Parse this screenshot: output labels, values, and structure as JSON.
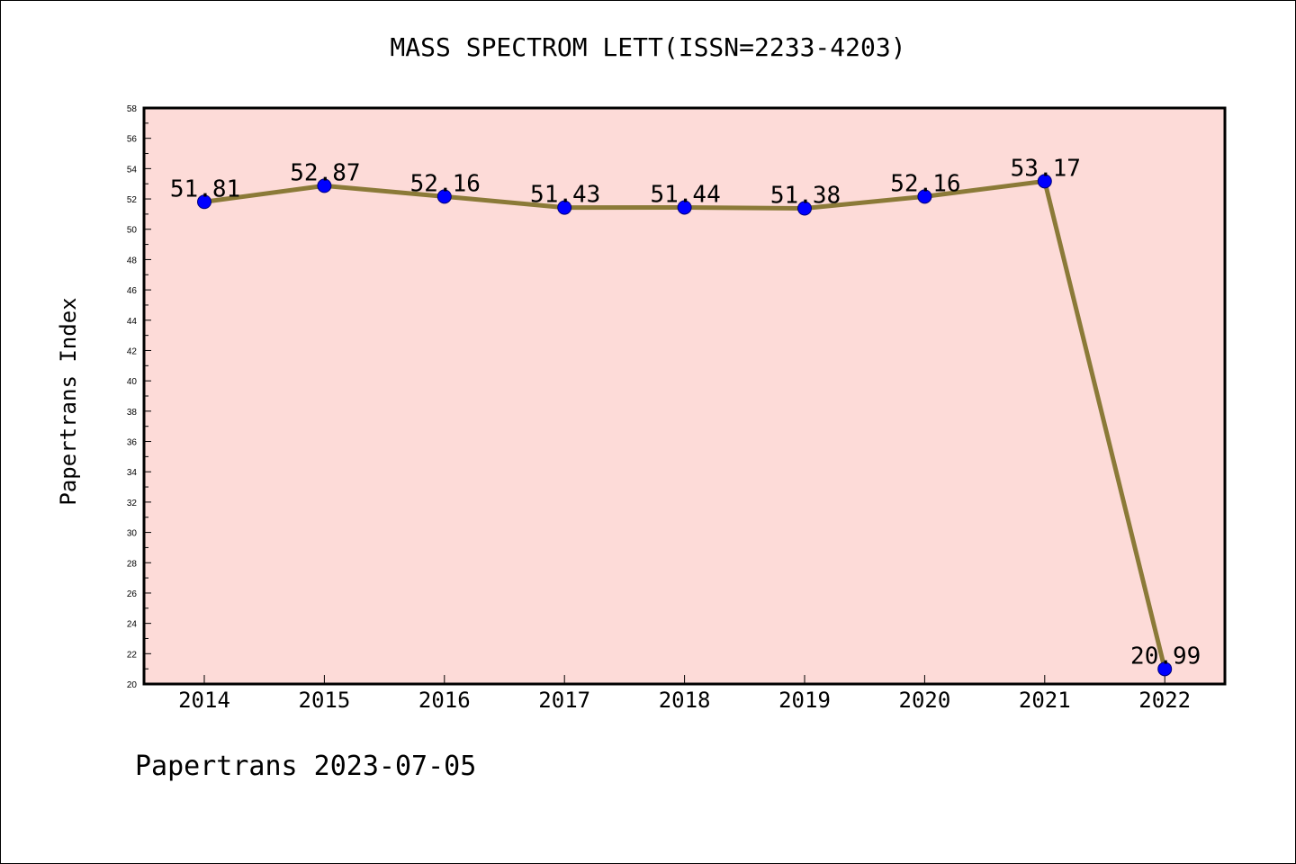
{
  "colors": {
    "plot_background": "#fddbd8",
    "line": "#8b7a38",
    "marker": "#0000ff",
    "axis": "#000000"
  },
  "chart_data": {
    "type": "line",
    "title": "MASS SPECTROM LETT(ISSN=2233-4203)",
    "xlabel": "",
    "ylabel": "Papertrans Index",
    "categories": [
      "2014",
      "2015",
      "2016",
      "2017",
      "2018",
      "2019",
      "2020",
      "2021",
      "2022"
    ],
    "series": [
      {
        "values": [
          51.81,
          52.87,
          52.16,
          51.43,
          51.44,
          51.38,
          52.16,
          53.17,
          20.99
        ],
        "labels": [
          "51.81",
          "52.87",
          "52.16",
          "51.43",
          "51.44",
          "51.38",
          "52.16",
          "53.17",
          "20.99"
        ]
      }
    ],
    "ylim": [
      20,
      58
    ],
    "yticks": [
      "20",
      "22",
      "24",
      "26",
      "28",
      "30",
      "32",
      "34",
      "36",
      "38",
      "40",
      "42",
      "44",
      "46",
      "48",
      "50",
      "52",
      "54",
      "56",
      "58"
    ],
    "grid": false,
    "legend": "none"
  },
  "footer": {
    "text": "Papertrans 2023-07-05"
  }
}
